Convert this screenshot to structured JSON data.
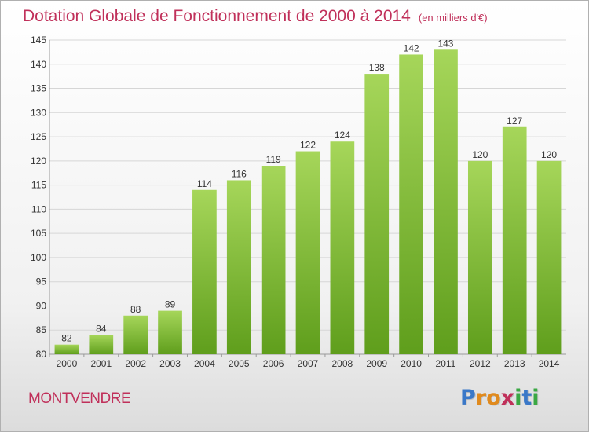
{
  "title": "Dotation Globale de Fonctionnement de 2000 à 2014",
  "subtitle": "(en milliers d'€)",
  "commune": "MONTVENDRE",
  "logo": {
    "letters": [
      "P",
      "r",
      "o",
      "x",
      "i",
      "t",
      "i"
    ],
    "colors": [
      "#3a78c8",
      "#e08a1e",
      "#e08a1e",
      "#c0305a",
      "#3aa843",
      "#3a78c8",
      "#3aa843"
    ]
  },
  "colors": {
    "title": "#c0305a",
    "bar_light": "#a6d65a",
    "bar_dark": "#5f9e1c"
  },
  "chart_data": {
    "type": "bar",
    "title": "Dotation Globale de Fonctionnement de 2000 à 2014",
    "subtitle": "(en milliers d'€)",
    "xlabel": "",
    "ylabel": "",
    "categories": [
      "2000",
      "2001",
      "2002",
      "2003",
      "2004",
      "2005",
      "2006",
      "2007",
      "2008",
      "2009",
      "2010",
      "2011",
      "2012",
      "2013",
      "2014"
    ],
    "values": [
      82,
      84,
      88,
      89,
      114,
      116,
      119,
      122,
      124,
      138,
      142,
      143,
      120,
      127,
      120
    ],
    "ylim": [
      80,
      145
    ],
    "yticks": [
      80,
      85,
      90,
      95,
      100,
      105,
      110,
      115,
      120,
      125,
      130,
      135,
      140,
      145
    ],
    "grid": true,
    "data_labels": true
  }
}
